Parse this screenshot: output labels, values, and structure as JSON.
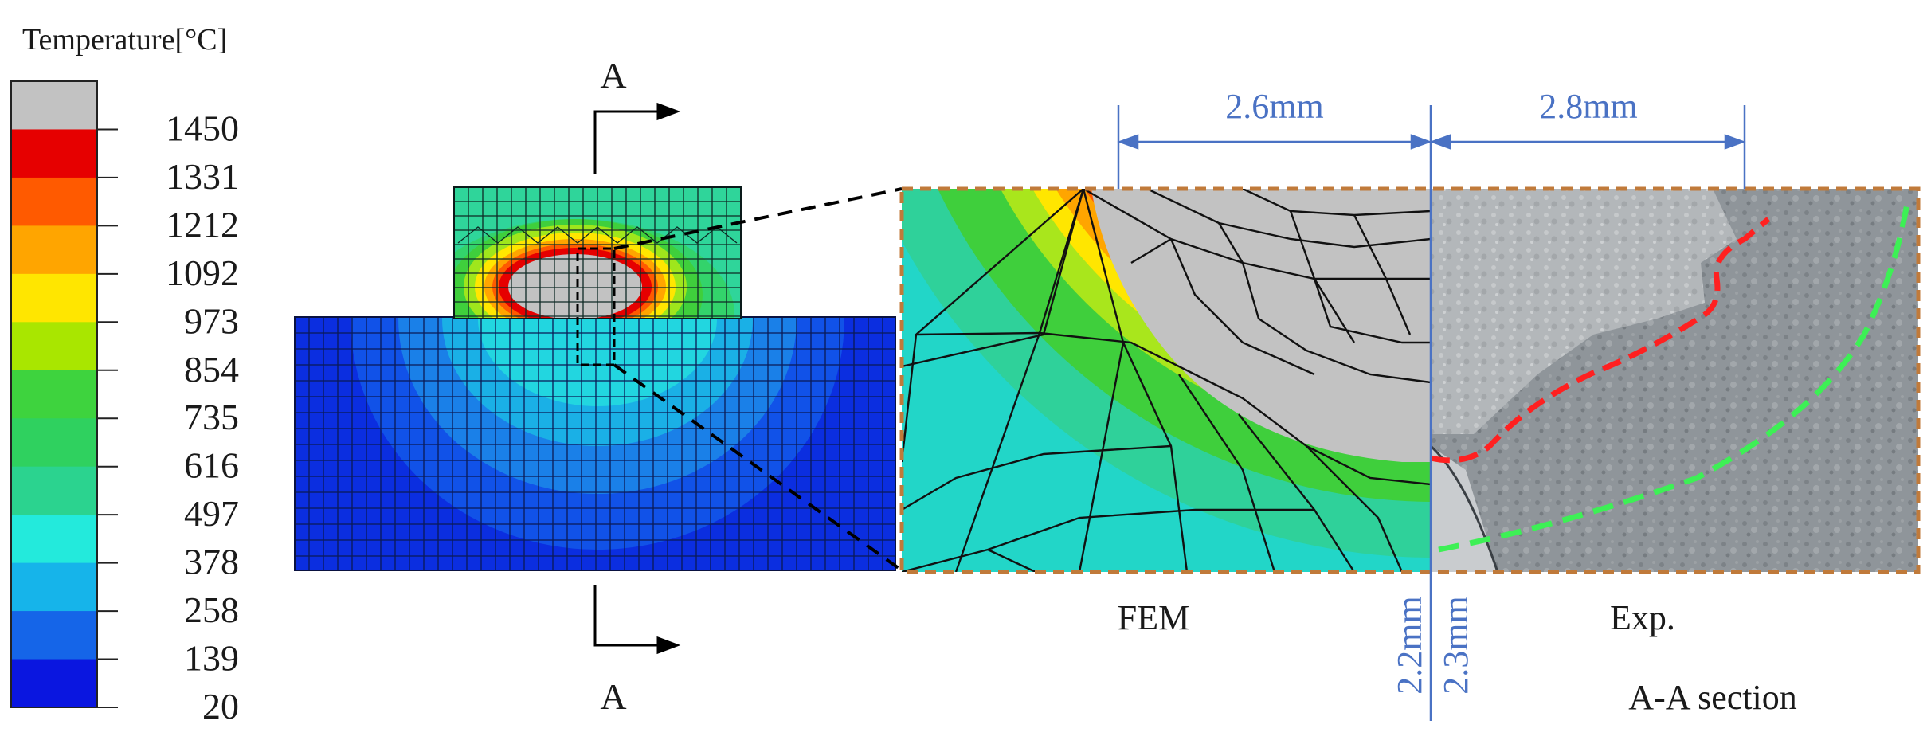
{
  "legend": {
    "title": "Temperature[°C]",
    "ticks": [
      "1450",
      "1331",
      "1212",
      "1092",
      "973",
      "854",
      "735",
      "616",
      "497",
      "378",
      "258",
      "139",
      "20"
    ],
    "colors": [
      "#c2c2c2",
      "#e60000",
      "#ff5a00",
      "#ffa500",
      "#ffe600",
      "#a9e600",
      "#3ed33e",
      "#2fd15f",
      "#2bd38f",
      "#23eadc",
      "#16b4ea",
      "#1565e8",
      "#0a16e0"
    ]
  },
  "section_labels": {
    "top": "A",
    "bottom": "A"
  },
  "dimensions": {
    "top_left": "2.6mm",
    "top_right": "2.8mm",
    "vertical_left": "2.2mm",
    "vertical_right": "2.3mm"
  },
  "captions": {
    "fem": "FEM",
    "exp": "Exp.",
    "section": "A-A section"
  },
  "colors": {
    "dimension": "#4a72c4",
    "frame": "#c07a3a",
    "red_boundary": "#ff2020",
    "green_boundary": "#3df055",
    "base_plate": "#0b2ee0"
  }
}
